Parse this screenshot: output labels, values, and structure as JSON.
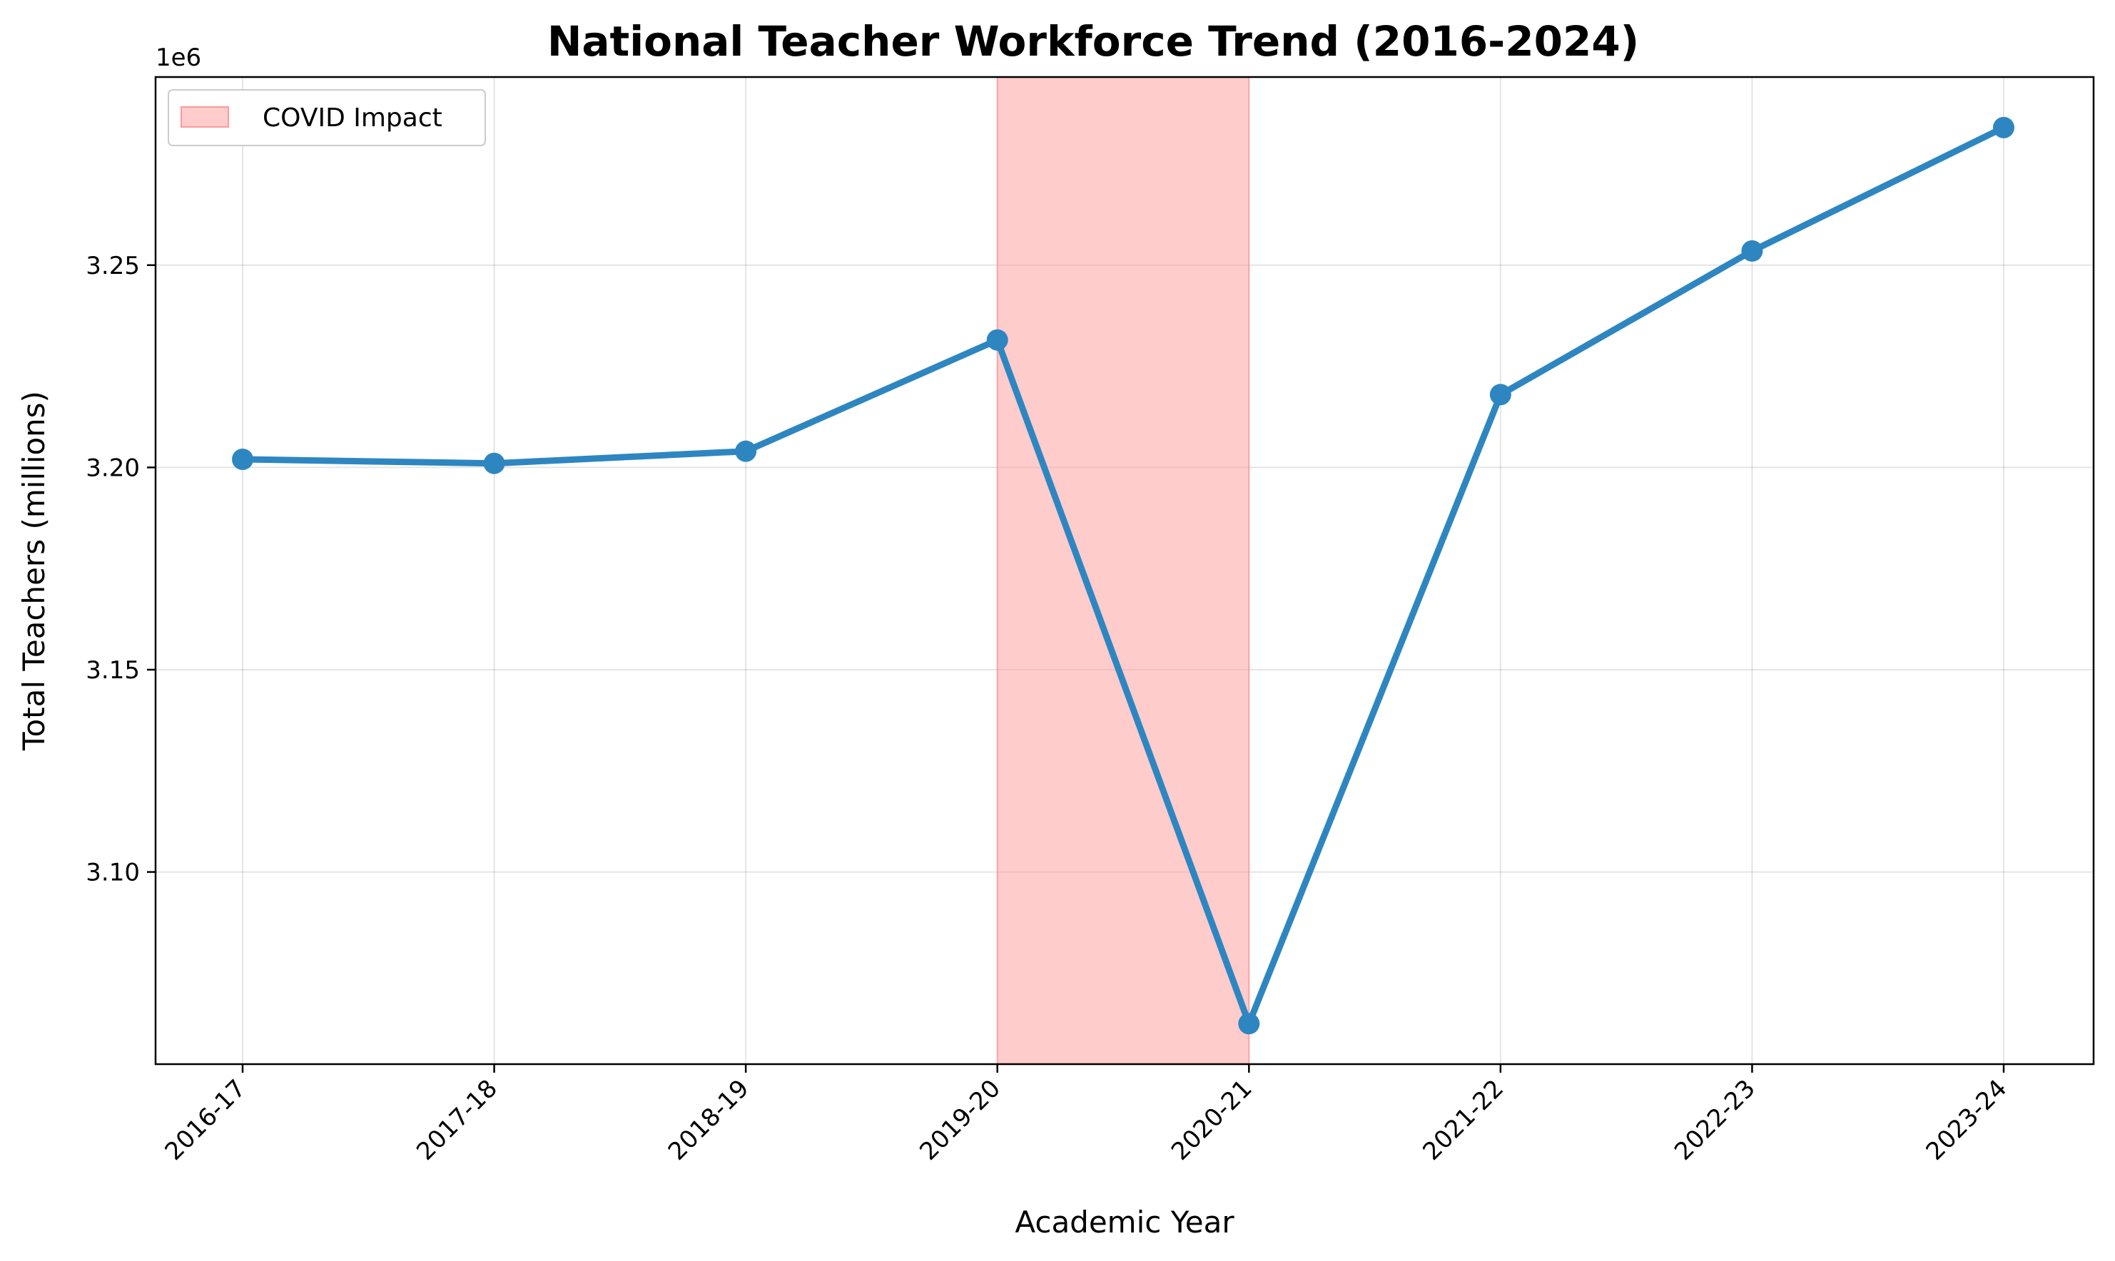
{
  "chart_data": {
    "type": "line",
    "title": "National Teacher Workforce Trend (2016-2024)",
    "xlabel": "Academic Year",
    "ylabel": "Total Teachers (millions)",
    "y_offset_label": "1e6",
    "categories": [
      "2016-17",
      "2017-18",
      "2018-19",
      "2019-20",
      "2020-21",
      "2021-22",
      "2022-23",
      "2023-24"
    ],
    "series": [
      {
        "values": [
          3202000,
          3201000,
          3204000,
          3231500,
          3062500,
          3218000,
          3253500,
          3284000
        ],
        "color": "#2e86c1"
      }
    ],
    "ylim": [
      3052500,
      3296500
    ],
    "yticks": [
      3100000,
      3150000,
      3200000,
      3250000
    ],
    "ytick_labels": [
      "3.10",
      "3.15",
      "3.20",
      "3.25"
    ],
    "shaded_region": {
      "label": "COVID Impact",
      "from_category": "2019-20",
      "to_category": "2020-21",
      "color": "#ff9999"
    },
    "grid": true,
    "legend_position": "top-left"
  }
}
